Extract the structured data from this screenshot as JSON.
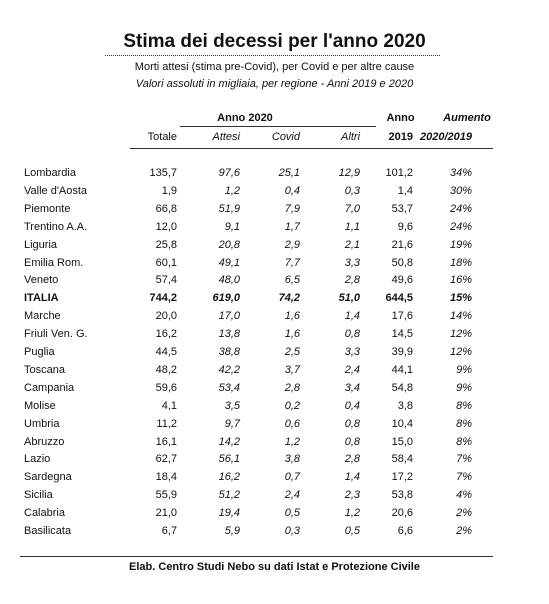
{
  "header": {
    "title": "Stima dei decessi per l'anno 2020",
    "subtitle": "Morti attesi (stima pre-Covid), per Covid e per altre cause",
    "note": "Valori assoluti in migliaia, per regione - Anni 2019 e 2020"
  },
  "table": {
    "group_header": "Anno 2020",
    "top_headers": [
      "Anno",
      "Aumento"
    ],
    "columns": [
      "Totale",
      "Attesi",
      "Covid",
      "Altri",
      "2019",
      "2020/2019"
    ],
    "rows": [
      [
        "Lombardia",
        "135,7",
        "97,6",
        "25,1",
        "12,9",
        "101,2",
        "34%"
      ],
      [
        "Valle d'Aosta",
        "1,9",
        "1,2",
        "0,4",
        "0,3",
        "1,4",
        "30%"
      ],
      [
        "Piemonte",
        "66,8",
        "51,9",
        "7,9",
        "7,0",
        "53,7",
        "24%"
      ],
      [
        "Trentino A.A.",
        "12,0",
        "9,1",
        "1,7",
        "1,1",
        "9,6",
        "24%"
      ],
      [
        "Liguria",
        "25,8",
        "20,8",
        "2,9",
        "2,1",
        "21,6",
        "19%"
      ],
      [
        "Emilia Rom.",
        "60,1",
        "49,1",
        "7,7",
        "3,3",
        "50,8",
        "18%"
      ],
      [
        "Veneto",
        "57,4",
        "48,0",
        "6,5",
        "2,8",
        "49,6",
        "16%"
      ],
      [
        "ITALIA",
        "744,2",
        "619,0",
        "74,2",
        "51,0",
        "644,5",
        "15%"
      ],
      [
        "Marche",
        "20,0",
        "17,0",
        "1,6",
        "1,4",
        "17,6",
        "14%"
      ],
      [
        "Friuli Ven. G.",
        "16,2",
        "13,8",
        "1,6",
        "0,8",
        "14,5",
        "12%"
      ],
      [
        "Puglia",
        "44,5",
        "38,8",
        "2,5",
        "3,3",
        "39,9",
        "12%"
      ],
      [
        "Toscana",
        "48,2",
        "42,2",
        "3,7",
        "2,4",
        "44,1",
        "9%"
      ],
      [
        "Campania",
        "59,6",
        "53,4",
        "2,8",
        "3,4",
        "54,8",
        "9%"
      ],
      [
        "Molise",
        "4,1",
        "3,5",
        "0,2",
        "0,4",
        "3,8",
        "8%"
      ],
      [
        "Umbria",
        "11,2",
        "9,7",
        "0,6",
        "0,8",
        "10,4",
        "8%"
      ],
      [
        "Abruzzo",
        "16,1",
        "14,2",
        "1,2",
        "0,8",
        "15,0",
        "8%"
      ],
      [
        "Lazio",
        "62,7",
        "56,1",
        "3,8",
        "2,8",
        "58,4",
        "7%"
      ],
      [
        "Sardegna",
        "18,4",
        "16,2",
        "0,7",
        "1,4",
        "17,2",
        "7%"
      ],
      [
        "Sicilia",
        "55,9",
        "51,2",
        "2,4",
        "2,3",
        "53,8",
        "4%"
      ],
      [
        "Calabria",
        "21,0",
        "19,4",
        "0,5",
        "1,2",
        "20,6",
        "2%"
      ],
      [
        "Basilicata",
        "6,7",
        "5,9",
        "0,3",
        "0,5",
        "6,6",
        "2%"
      ]
    ]
  },
  "footer": {
    "source": "Elab. Centro Studi Nebo su dati Istat e Protezione Civile"
  }
}
